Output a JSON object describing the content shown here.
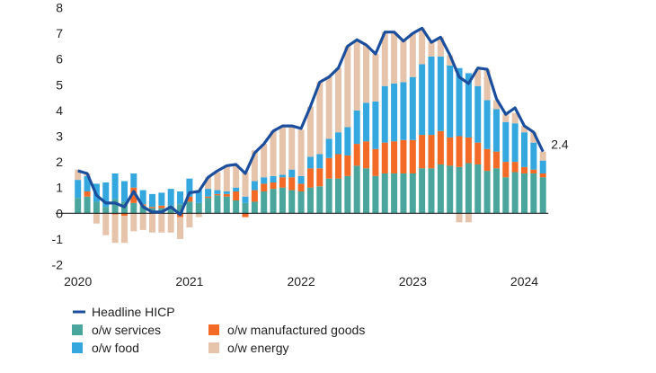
{
  "chart_data": {
    "type": "bar",
    "stacked": true,
    "title": "",
    "xlabel": "",
    "ylabel": "",
    "ylim": [
      -2,
      8
    ],
    "yticks": [
      "8",
      "7",
      "6",
      "5",
      "4",
      "3",
      "2",
      "1",
      "0",
      "-1",
      "-2"
    ],
    "xtick_labels": [
      "2020",
      "2021",
      "2022",
      "2023",
      "2024"
    ],
    "x_start": "2020-01",
    "x_end": "2024-03",
    "frequency": "monthly",
    "grid": false,
    "legend_position": "bottom",
    "end_label": "2.4",
    "colors": {
      "services": "#4aa59c",
      "manufactured": "#f26a25",
      "food": "#35a7df",
      "energy": "#e6c3ab",
      "headline": "#1b4f9e"
    },
    "legend": {
      "headline": "Headline HICP",
      "services": "o/w services",
      "manufactured": "o/w manufactured goods",
      "food": "o/w food",
      "energy": "o/w energy"
    },
    "series": [
      {
        "name": "o/w services",
        "key": "services",
        "values": [
          0.6,
          0.65,
          0.45,
          0.25,
          0.55,
          0.45,
          0.4,
          0.3,
          0.2,
          0.2,
          0.3,
          0.35,
          0.45,
          0.4,
          0.6,
          0.7,
          0.65,
          0.5,
          0.4,
          0.45,
          0.85,
          0.95,
          1.0,
          0.9,
          0.85,
          1.0,
          1.05,
          1.35,
          1.35,
          1.45,
          1.85,
          1.75,
          1.45,
          1.55,
          1.55,
          1.55,
          1.55,
          1.75,
          1.75,
          1.9,
          1.85,
          1.8,
          1.95,
          1.9,
          1.65,
          1.75,
          1.4,
          1.6,
          1.55,
          1.55,
          1.4
        ]
      },
      {
        "name": "o/w manufactured goods",
        "key": "manufactured",
        "values": [
          0.0,
          0.2,
          0.0,
          0.0,
          -0.05,
          -0.1,
          0.6,
          0.05,
          0.05,
          0.1,
          0.0,
          -0.15,
          0.2,
          0.0,
          0.05,
          0.05,
          0.1,
          0.35,
          -0.15,
          0.45,
          0.3,
          0.25,
          0.4,
          0.5,
          0.3,
          0.75,
          0.7,
          0.8,
          0.95,
          0.8,
          0.85,
          1.05,
          1.05,
          1.2,
          1.25,
          1.3,
          1.3,
          1.3,
          1.3,
          1.3,
          1.1,
          1.2,
          1.0,
          0.85,
          0.85,
          0.65,
          0.6,
          0.4,
          0.25,
          0.15,
          0.15
        ]
      },
      {
        "name": "o/w food",
        "key": "food",
        "values": [
          0.7,
          0.6,
          0.7,
          0.95,
          1.0,
          0.8,
          0.55,
          0.55,
          0.5,
          0.5,
          0.65,
          0.5,
          0.7,
          0.5,
          0.3,
          0.15,
          0.1,
          0.15,
          0.25,
          0.35,
          0.25,
          0.25,
          0.1,
          0.3,
          0.3,
          0.45,
          0.55,
          0.75,
          0.85,
          1.1,
          1.3,
          1.5,
          1.85,
          2.2,
          2.25,
          2.25,
          2.45,
          2.75,
          3.05,
          2.9,
          2.8,
          2.65,
          2.5,
          2.2,
          1.9,
          1.65,
          1.55,
          1.5,
          1.35,
          1.05,
          0.5
        ]
      },
      {
        "name": "o/w energy",
        "key": "energy",
        "values": [
          0.4,
          0.1,
          -0.4,
          -0.85,
          -1.1,
          -1.05,
          -0.7,
          -0.65,
          -0.75,
          -0.75,
          -0.75,
          -0.85,
          -0.55,
          -0.15,
          0.45,
          0.7,
          0.95,
          0.9,
          0.95,
          1.2,
          1.3,
          1.75,
          1.9,
          1.7,
          1.8,
          1.95,
          2.8,
          2.4,
          2.5,
          3.15,
          2.75,
          2.25,
          1.85,
          2.1,
          2.0,
          1.6,
          1.7,
          1.4,
          0.55,
          0.75,
          0.4,
          -0.35,
          -0.35,
          0.65,
          1.2,
          0.35,
          0.3,
          0.4,
          0.25,
          0.4,
          0.35
        ]
      },
      {
        "name": "Headline HICP",
        "key": "headline",
        "type": "line",
        "values": [
          1.65,
          1.55,
          0.7,
          0.4,
          0.4,
          0.25,
          0.85,
          0.25,
          0.05,
          0.05,
          0.25,
          -0.05,
          0.8,
          0.85,
          1.4,
          1.65,
          1.85,
          1.9,
          1.55,
          2.35,
          2.7,
          3.2,
          3.4,
          3.4,
          3.3,
          4.15,
          5.1,
          5.3,
          5.65,
          6.5,
          6.75,
          6.55,
          6.2,
          7.05,
          7.05,
          6.7,
          7.0,
          7.2,
          6.65,
          6.85,
          6.15,
          5.3,
          5.05,
          5.65,
          5.6,
          4.45,
          3.85,
          4.1,
          3.4,
          3.15,
          2.4
        ]
      }
    ]
  }
}
